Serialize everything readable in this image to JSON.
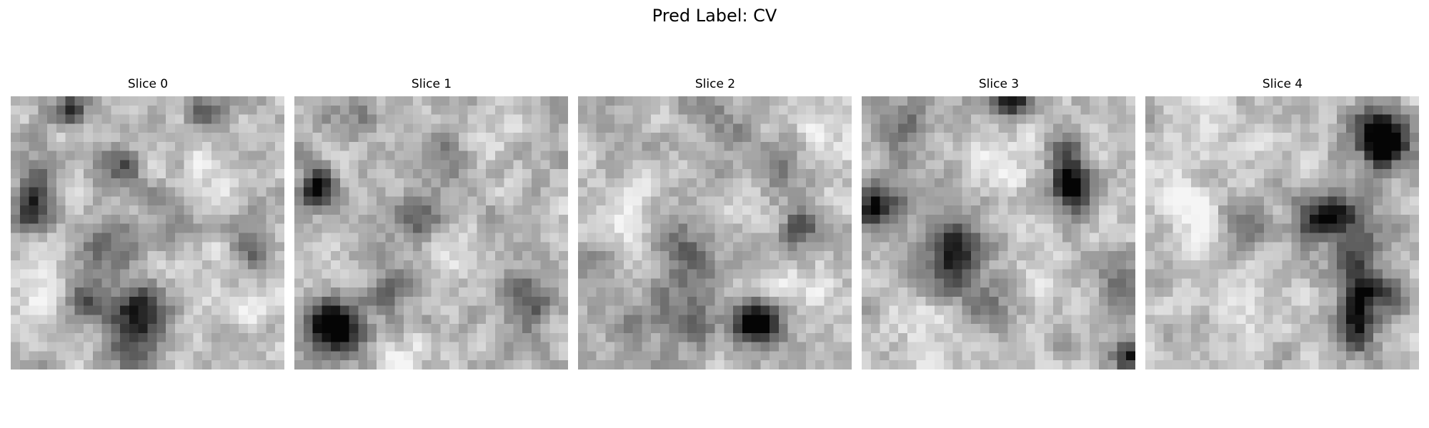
{
  "figure": {
    "suptitle": "Pred Label: CV",
    "colormap": "gray",
    "axes_visible": false,
    "grid": false
  },
  "slices": [
    {
      "title": "Slice 0",
      "dark_spots": [
        [
          6.5,
          1.5,
          0.22,
          1.3
        ],
        [
          21.5,
          1.8,
          0.18,
          1.3
        ],
        [
          12.0,
          8.0,
          0.18,
          1.6
        ],
        [
          2.5,
          12.5,
          0.3,
          1.5
        ],
        [
          26.5,
          16.8,
          0.18,
          1.5
        ],
        [
          18.0,
          12.5,
          0.12,
          2.5
        ],
        [
          10.5,
          16.5,
          0.12,
          2.5
        ],
        [
          14.5,
          23.5,
          0.28,
          2.0
        ],
        [
          9.0,
          22.5,
          0.18,
          2.0
        ],
        [
          13.5,
          27.5,
          0.18,
          2.0
        ],
        [
          3.0,
          8.5,
          0.18,
          1.5
        ]
      ],
      "light_spots": [
        [
          19.5,
          10.5,
          0.18,
          2.5
        ],
        [
          3.0,
          22.5,
          0.14,
          2.5
        ],
        [
          25.0,
          22.5,
          0.12,
          3.0
        ]
      ],
      "seed": 11
    },
    {
      "title": "Slice 1",
      "dark_spots": [
        [
          2.5,
          10.0,
          0.3,
          1.5
        ],
        [
          13.5,
          13.5,
          0.2,
          2.0
        ],
        [
          11.0,
          21.5,
          0.12,
          2.5
        ],
        [
          4.0,
          25.0,
          0.32,
          1.8
        ],
        [
          5.5,
          26.5,
          0.15,
          2.0
        ],
        [
          25.5,
          22.0,
          0.18,
          2.0
        ],
        [
          24.5,
          27.5,
          0.12,
          2.0
        ],
        [
          16.5,
          6.0,
          0.12,
          2.0
        ],
        [
          6.0,
          2.5,
          0.1,
          2.0
        ]
      ],
      "light_spots": [
        [
          21.0,
          5.0,
          0.16,
          2.0
        ],
        [
          17.0,
          16.5,
          0.12,
          2.5
        ],
        [
          12.0,
          28.5,
          0.12,
          2.5
        ]
      ],
      "seed": 23
    },
    {
      "title": "Slice 2",
      "dark_spots": [
        [
          19.5,
          24.5,
          0.36,
          1.5
        ],
        [
          20.5,
          26.5,
          0.16,
          2.0
        ],
        [
          12.0,
          16.0,
          0.1,
          2.5
        ],
        [
          12.0,
          21.0,
          0.1,
          2.5
        ],
        [
          13.0,
          25.0,
          0.1,
          2.5
        ],
        [
          24.5,
          14.5,
          0.2,
          1.5
        ],
        [
          22.0,
          7.5,
          0.1,
          2.0
        ],
        [
          15.0,
          3.0,
          0.1,
          2.5
        ],
        [
          1.5,
          18.0,
          0.1,
          2.0
        ],
        [
          6.0,
          25.0,
          0.08,
          2.5
        ]
      ],
      "light_spots": [
        [
          5.5,
          14.0,
          0.16,
          2.5
        ],
        [
          26.0,
          4.0,
          0.12,
          2.5
        ],
        [
          25.5,
          20.5,
          0.12,
          2.5
        ]
      ],
      "seed": 37
    },
    {
      "title": "Slice 3",
      "dark_spots": [
        [
          16.5,
          0.5,
          0.3,
          1.2
        ],
        [
          22.5,
          6.5,
          0.2,
          1.5
        ],
        [
          23.0,
          9.5,
          0.32,
          1.3
        ],
        [
          23.5,
          11.5,
          0.18,
          1.5
        ],
        [
          1.2,
          12.5,
          0.3,
          1.3
        ],
        [
          3.5,
          11.5,
          0.15,
          2.0
        ],
        [
          10.0,
          16.5,
          0.12,
          2.0
        ],
        [
          9.5,
          19.5,
          0.18,
          2.0
        ],
        [
          11.0,
          15.5,
          0.12,
          2.0
        ],
        [
          13.5,
          23.0,
          0.12,
          2.0
        ],
        [
          28.0,
          20.0,
          0.12,
          2.0
        ],
        [
          29.3,
          28.5,
          0.3,
          1.2
        ],
        [
          5.0,
          3.5,
          0.12,
          2.0
        ]
      ],
      "light_spots": [
        [
          16.0,
          7.0,
          0.18,
          2.0
        ],
        [
          7.0,
          24.5,
          0.12,
          2.5
        ],
        [
          19.5,
          19.0,
          0.12,
          2.5
        ]
      ],
      "seed": 53
    },
    {
      "title": "Slice 4",
      "dark_spots": [
        [
          25.0,
          3.5,
          0.22,
          2.0
        ],
        [
          26.0,
          5.5,
          0.3,
          1.5
        ],
        [
          27.5,
          4.0,
          0.12,
          2.0
        ],
        [
          19.5,
          13.0,
          0.25,
          1.5
        ],
        [
          22.5,
          13.0,
          0.16,
          2.0
        ],
        [
          18.0,
          14.5,
          0.12,
          2.0
        ],
        [
          23.0,
          17.0,
          0.18,
          1.8
        ],
        [
          23.5,
          21.0,
          0.24,
          1.5
        ],
        [
          23.0,
          24.0,
          0.22,
          1.5
        ],
        [
          23.5,
          26.5,
          0.16,
          1.5
        ],
        [
          26.0,
          21.5,
          0.12,
          2.0
        ],
        [
          10.5,
          14.5,
          0.1,
          2.0
        ]
      ],
      "light_spots": [
        [
          5.0,
          3.0,
          0.16,
          3.0
        ],
        [
          5.0,
          12.0,
          0.14,
          3.0
        ],
        [
          10.5,
          24.0,
          0.12,
          3.0
        ]
      ],
      "seed": 71
    }
  ]
}
